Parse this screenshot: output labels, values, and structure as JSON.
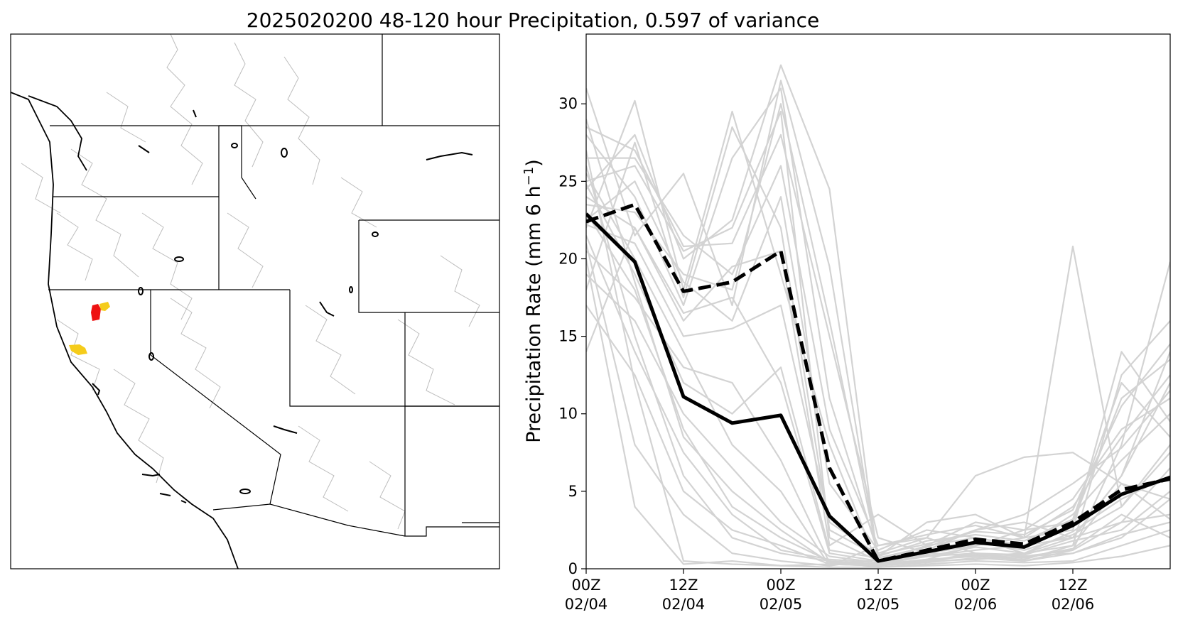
{
  "figure": {
    "title": "2025020200 48-120 hour Precipitation, 0.597 of variance"
  },
  "map_panel": {
    "description_name": "western-us-basin-map",
    "highlight_colors": {
      "primary": "#ee1111",
      "secondary": "#f5cc1b"
    },
    "boundary_color": "#000000",
    "basin_line_color": "#bdbdbd"
  },
  "chart_data": {
    "type": "line",
    "title": "2025020200 48-120 hour Precipitation, 0.597 of variance",
    "xlabel": "",
    "ylabel": "Precipitation Rate (mm 6 h",
    "ylabel_superscript": "−1",
    "ylabel_suffix": ")",
    "x": [
      0,
      6,
      12,
      18,
      24,
      30,
      36,
      42,
      48,
      54,
      60,
      66,
      72
    ],
    "xlim": [
      0,
      72
    ],
    "ylim": [
      0,
      34.5
    ],
    "yticks": [
      0,
      5,
      10,
      15,
      20,
      25,
      30
    ],
    "xticks": [
      {
        "x": 0,
        "line1": "00Z",
        "line2": "02/04"
      },
      {
        "x": 12,
        "line1": "12Z",
        "line2": "02/04"
      },
      {
        "x": 24,
        "line1": "00Z",
        "line2": "02/05"
      },
      {
        "x": 36,
        "line1": "12Z",
        "line2": "02/05"
      },
      {
        "x": 48,
        "line1": "00Z",
        "line2": "02/06"
      },
      {
        "x": 60,
        "line1": "12Z",
        "line2": "02/06"
      }
    ],
    "series": [
      {
        "name": "ensemble-mean",
        "style": "solid",
        "color": "#000000",
        "values": [
          22.9,
          19.8,
          11.1,
          9.4,
          9.9,
          3.4,
          0.5,
          1.1,
          1.7,
          1.4,
          2.8,
          4.8,
          5.9
        ]
      },
      {
        "name": "reference",
        "style": "dashed",
        "color": "#000000",
        "values": [
          22.4,
          23.5,
          17.9,
          18.5,
          20.5,
          6.5,
          0.5,
          1.2,
          1.9,
          1.6,
          3.0,
          5.1,
          5.8
        ]
      }
    ],
    "members_color": "#d3d3d3",
    "members": [
      [
        24.5,
        28.0,
        20.0,
        22.5,
        32.5,
        24.5,
        0.3,
        0.8,
        1.0,
        0.5,
        1.2,
        8.0,
        19.8
      ],
      [
        31.0,
        21.5,
        25.5,
        17.0,
        31.5,
        19.5,
        0.5,
        1.2,
        2.5,
        3.0,
        2.0,
        3.0,
        3.5
      ],
      [
        22.0,
        30.2,
        18.0,
        29.5,
        19.0,
        8.0,
        0.2,
        0.6,
        1.5,
        2.0,
        2.5,
        14.0,
        9.5
      ],
      [
        28.0,
        24.0,
        17.0,
        26.5,
        31.0,
        11.0,
        1.0,
        2.0,
        6.0,
        7.2,
        7.5,
        5.5,
        4.5
      ],
      [
        18.0,
        27.5,
        17.5,
        28.5,
        22.0,
        2.5,
        0.8,
        3.0,
        3.5,
        2.0,
        20.8,
        4.0,
        8.0
      ],
      [
        14.0,
        22.0,
        16.0,
        19.5,
        20.5,
        1.5,
        3.5,
        1.5,
        2.0,
        1.0,
        1.5,
        12.5,
        16.0
      ],
      [
        25.0,
        26.0,
        20.5,
        22.0,
        29.5,
        2.0,
        0.5,
        0.8,
        1.2,
        1.5,
        2.0,
        6.0,
        14.0
      ],
      [
        20.0,
        4.0,
        0.3,
        0.5,
        0.2,
        0.3,
        0.2,
        0.5,
        0.6,
        0.8,
        1.0,
        2.0,
        4.5
      ],
      [
        26.0,
        15.0,
        6.0,
        2.0,
        1.0,
        0.5,
        0.1,
        0.3,
        0.5,
        0.4,
        0.5,
        1.5,
        2.5
      ],
      [
        23.0,
        18.0,
        9.0,
        4.0,
        2.0,
        0.5,
        0.3,
        0.6,
        0.8,
        1.0,
        2.0,
        6.0,
        12.0
      ],
      [
        27.0,
        12.0,
        0.5,
        0.3,
        0.2,
        0.1,
        0.1,
        0.2,
        0.3,
        0.2,
        0.4,
        0.8,
        1.5
      ],
      [
        21.0,
        8.0,
        3.5,
        1.0,
        0.5,
        0.2,
        1.5,
        2.0,
        1.0,
        0.8,
        1.2,
        3.0,
        6.5
      ],
      [
        24.0,
        22.0,
        16.5,
        17.5,
        12.0,
        1.0,
        0.5,
        1.5,
        3.0,
        2.5,
        4.5,
        9.0,
        11.0
      ],
      [
        19.0,
        16.0,
        10.0,
        6.5,
        3.0,
        0.8,
        0.4,
        0.9,
        1.8,
        1.2,
        2.2,
        4.0,
        7.5
      ],
      [
        22.5,
        25.0,
        18.5,
        16.0,
        24.0,
        5.5,
        1.2,
        2.5,
        2.0,
        1.5,
        3.5,
        7.0,
        10.0
      ],
      [
        25.5,
        20.0,
        14.0,
        8.0,
        5.0,
        0.2,
        0.6,
        1.0,
        0.8,
        0.6,
        1.5,
        5.5,
        3.2
      ],
      [
        20.5,
        17.5,
        13.0,
        12.0,
        7.0,
        0.4,
        0.3,
        0.5,
        1.0,
        0.9,
        1.8,
        2.5,
        5.0
      ],
      [
        28.5,
        27.0,
        20.8,
        21.0,
        28.0,
        15.0,
        2.0,
        1.0,
        1.5,
        2.5,
        3.0,
        11.0,
        13.5
      ],
      [
        17.0,
        12.5,
        5.0,
        2.5,
        1.5,
        0.3,
        0.2,
        0.4,
        0.7,
        0.5,
        1.0,
        2.2,
        3.0
      ],
      [
        23.5,
        23.0,
        19.0,
        18.0,
        30.0,
        16.0,
        0.8,
        1.8,
        2.2,
        1.8,
        3.2,
        12.0,
        8.5
      ],
      [
        21.5,
        14.0,
        7.5,
        3.5,
        1.2,
        0.6,
        0.4,
        0.8,
        1.4,
        1.0,
        2.4,
        4.5,
        6.0
      ],
      [
        26.5,
        26.5,
        21.5,
        19.0,
        26.0,
        9.0,
        1.5,
        2.2,
        2.8,
        2.0,
        4.0,
        8.5,
        12.5
      ],
      [
        24.8,
        19.0,
        12.0,
        10.0,
        13.0,
        1.2,
        0.7,
        1.4,
        2.5,
        3.5,
        5.5,
        7.8,
        11.5
      ],
      [
        22.2,
        21.0,
        15.0,
        15.5,
        17.0,
        3.0,
        0.9,
        1.6,
        2.4,
        2.2,
        3.8,
        10.5,
        14.5
      ],
      [
        29.0,
        18.5,
        8.5,
        5.0,
        2.5,
        0.4,
        0.2,
        0.5,
        0.9,
        0.7,
        1.3,
        3.5,
        2.0
      ]
    ]
  }
}
